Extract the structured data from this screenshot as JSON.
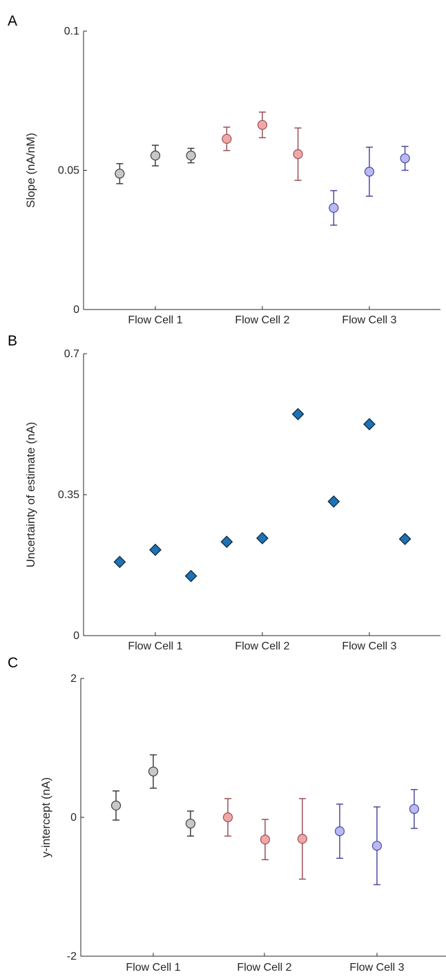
{
  "chart_data": [
    {
      "panel": "A",
      "type": "scatter",
      "marker": "circle-errorbar",
      "categories": [
        "Flow Cell 1",
        "Flow Cell 2",
        "Flow Cell 3"
      ],
      "ylabel": "Slope (nA/nM)",
      "ylim": [
        0,
        0.1
      ],
      "yticks": [
        "0",
        "0.05",
        "0.1"
      ],
      "series": [
        {
          "color": "#c8c8c8",
          "stroke": "#3c3c3c",
          "x": [
            0.667,
            1.0,
            1.333
          ],
          "y": [
            0.0488,
            0.0553,
            0.0553
          ],
          "err": [
            0.0036,
            0.0037,
            0.0026
          ]
        },
        {
          "color": "#f2a7a7",
          "stroke": "#9a4f55",
          "x": [
            1.667,
            2.0,
            2.333
          ],
          "y": [
            0.0613,
            0.0663,
            0.0558
          ],
          "err": [
            0.0042,
            0.0046,
            0.0094
          ]
        },
        {
          "color": "#b9b9f5",
          "stroke": "#4b4b9a",
          "x": [
            2.667,
            3.0,
            3.333
          ],
          "y": [
            0.0365,
            0.0495,
            0.0543
          ],
          "err": [
            0.0062,
            0.0088,
            0.0043
          ]
        }
      ]
    },
    {
      "panel": "B",
      "type": "scatter",
      "marker": "diamond",
      "categories": [
        "Flow Cell 1",
        "Flow Cell 2",
        "Flow Cell 3"
      ],
      "ylabel": "Uncertainty of estimate (nA)",
      "ylim": [
        0,
        0.7
      ],
      "yticks": [
        "0",
        "0.35",
        "0.7"
      ],
      "series": [
        {
          "color": "#1f72b4",
          "stroke": "#0a2840",
          "x": [
            0.667,
            1.0,
            1.333,
            1.667,
            2.0,
            2.333,
            2.667,
            3.0,
            3.333
          ],
          "y": [
            0.183,
            0.213,
            0.148,
            0.233,
            0.242,
            0.55,
            0.333,
            0.525,
            0.24
          ]
        }
      ]
    },
    {
      "panel": "C",
      "type": "scatter",
      "marker": "circle-errorbar",
      "categories": [
        "Flow Cell 1",
        "Flow Cell 2",
        "Flow Cell 3"
      ],
      "ylabel": "y-intercept (nA)",
      "ylim": [
        -2,
        2
      ],
      "yticks": [
        "-2",
        "0",
        "2"
      ],
      "series": [
        {
          "color": "#c8c8c8",
          "stroke": "#3c3c3c",
          "x": [
            0.667,
            1.0,
            1.333
          ],
          "y": [
            0.17,
            0.66,
            -0.09
          ],
          "err": [
            0.21,
            0.24,
            0.18
          ]
        },
        {
          "color": "#f2a7a7",
          "stroke": "#9a4f55",
          "x": [
            1.667,
            2.0,
            2.333
          ],
          "y": [
            0.0,
            -0.32,
            -0.31
          ],
          "err": [
            0.27,
            0.29,
            0.58
          ]
        },
        {
          "color": "#b9b9f5",
          "stroke": "#4b4b9a",
          "x": [
            2.667,
            3.0,
            3.333
          ],
          "y": [
            -0.2,
            -0.41,
            0.12
          ],
          "err": [
            0.39,
            0.56,
            0.28
          ]
        }
      ]
    }
  ]
}
